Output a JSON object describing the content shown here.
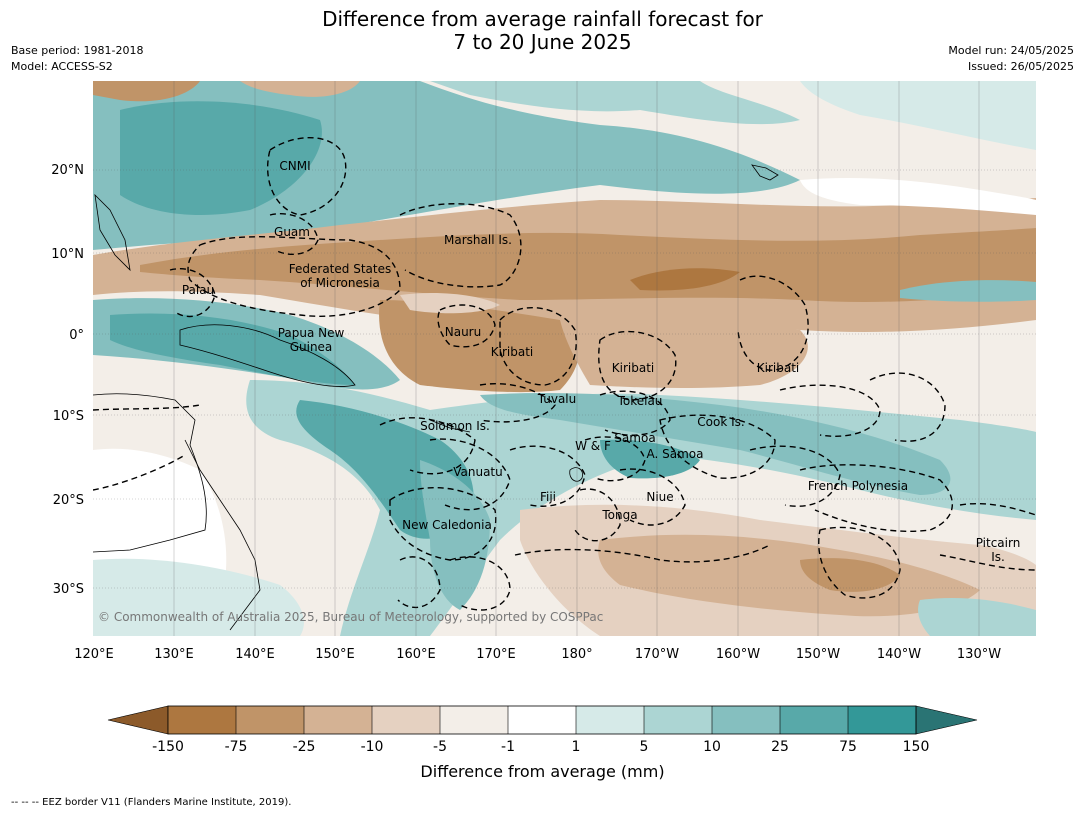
{
  "title_line1": "Difference from average rainfall forecast for",
  "title_line2": "7 to 20 June 2025",
  "base_period": "Base period: 1981-2018",
  "model": "Model: ACCESS-S2",
  "model_run": "Model run: 24/05/2025",
  "issued": "Issued: 26/05/2025",
  "copyright": "© Commonwealth of Australia 2025, Bureau of Meteorology, supported by COSPPac",
  "lat_labels": [
    "20°N",
    "10°N",
    "0°",
    "10°S",
    "20°S",
    "30°S"
  ],
  "lon_labels": [
    "120°E",
    "130°E",
    "140°E",
    "150°E",
    "160°E",
    "170°E",
    "180°",
    "170°W",
    "160°W",
    "150°W",
    "140°W",
    "130°W"
  ],
  "regions": {
    "cnmi": "CNMI",
    "guam": "Guam",
    "marshall": "Marshall Is.",
    "fsm1": "Federated States",
    "fsm2": "of Micronesia",
    "palau": "Palau",
    "png1": "Papua New",
    "png2": "Guinea",
    "nauru": "Nauru",
    "kiribati1": "Kiribati",
    "kiribati2": "Kiribati",
    "kiribati3": "Kiribati",
    "tuvalu": "Tuvalu",
    "tokelau": "Tokelau",
    "solomon": "Solomon Is.",
    "cook": "Cook Is.",
    "wf": "W & F",
    "samoa": "Samoa",
    "asamoa": "A. Samoa",
    "vanuatu": "Vanuatu",
    "fiji": "Fiji",
    "niue": "Niue",
    "frpoly": "French Polynesia",
    "tonga": "Tonga",
    "newcal": "New Caledonia",
    "pitcairn1": "Pitcairn",
    "pitcairn2": "Is."
  },
  "colorbar": {
    "ticks": [
      "-150",
      "-75",
      "-25",
      "-10",
      "-5",
      "-1",
      "1",
      "5",
      "10",
      "25",
      "75",
      "150"
    ],
    "colors": [
      "#8c5a2a",
      "#ad7740",
      "#c09468",
      "#d4b294",
      "#e5d1c1",
      "#f3eee8",
      "#ffffff",
      "#d6eae8",
      "#acd5d3",
      "#85bfbf",
      "#58a9a9",
      "#339898",
      "#2a7474"
    ],
    "label": "Difference from average (mm)"
  },
  "footnote": "--  --  -- EEZ border V11 (Flanders Marine Institute, 2019)."
}
